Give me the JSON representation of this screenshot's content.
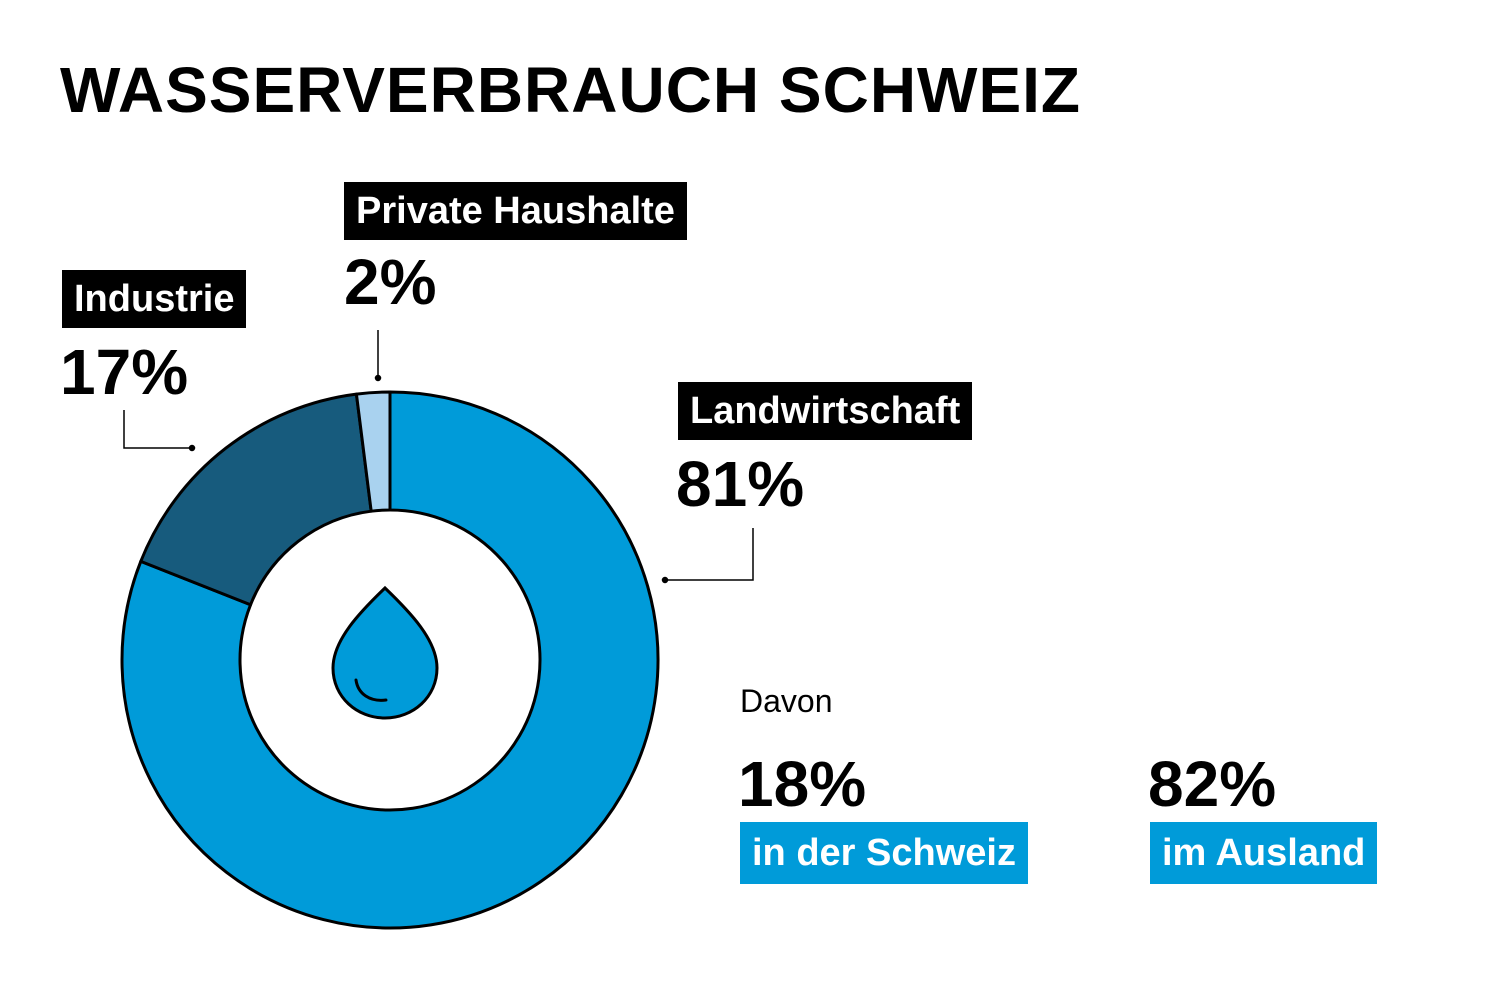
{
  "chart_data": {
    "type": "pie",
    "variant": "donut",
    "title": "WASSERVERBRAUCH SCHWEIZ",
    "slices": [
      {
        "name": "Landwirtschaft",
        "value": 81,
        "label": "81%",
        "color": "#009bd9"
      },
      {
        "name": "Industrie",
        "value": 17,
        "label": "17%",
        "color": "#175b7d"
      },
      {
        "name": "Private Haushalte",
        "value": 2,
        "label": "2%",
        "color": "#a9d2ef"
      }
    ],
    "center_icon": "water-drop-icon"
  },
  "breakdown": {
    "intro": "Davon",
    "items": [
      {
        "value": "18%",
        "label": "in der Schweiz"
      },
      {
        "value": "82%",
        "label": "im Ausland"
      }
    ],
    "accent_color": "#009bd9"
  }
}
